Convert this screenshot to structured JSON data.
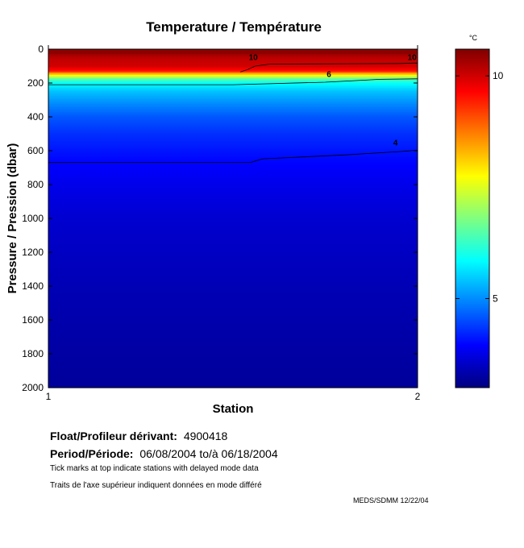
{
  "chart_data": {
    "type": "heatmap",
    "title": "Temperature / Température",
    "xlabel": "Station",
    "ylabel": "Pressure / Pression (dbar)",
    "xlim": [
      1,
      2
    ],
    "ylim": [
      2000,
      0
    ],
    "x_ticks": [
      "1",
      "2"
    ],
    "y_ticks": [
      "0",
      "200",
      "400",
      "600",
      "800",
      "1000",
      "1200",
      "1400",
      "1600",
      "1800",
      "2000"
    ],
    "x_tick_values": [
      1,
      2
    ],
    "y_tick_values": [
      0,
      200,
      400,
      600,
      800,
      1000,
      1200,
      1400,
      1600,
      1800,
      2000
    ],
    "stations": [
      1,
      2
    ],
    "colormap": "jet",
    "colorbar": {
      "unit": "°C",
      "range": [
        3,
        10.6
      ],
      "ticks": [
        "5",
        "10"
      ],
      "tick_values": [
        5,
        10
      ]
    },
    "profile": [
      {
        "p": 25,
        "t": 10.5
      },
      {
        "p": 35,
        "t": 10.3
      },
      {
        "p": 60,
        "t": 10.1
      },
      {
        "p": 100,
        "t": 10.0
      },
      {
        "p": 130,
        "t": 9.5
      },
      {
        "p": 150,
        "t": 8.0
      },
      {
        "p": 165,
        "t": 7.2
      },
      {
        "p": 180,
        "t": 6.4
      },
      {
        "p": 200,
        "t": 5.9
      },
      {
        "p": 250,
        "t": 5.4
      },
      {
        "p": 320,
        "t": 5.0
      },
      {
        "p": 400,
        "t": 4.6
      },
      {
        "p": 500,
        "t": 4.3
      },
      {
        "p": 650,
        "t": 4.0
      },
      {
        "p": 800,
        "t": 3.8
      },
      {
        "p": 1000,
        "t": 3.6
      },
      {
        "p": 1400,
        "t": 3.4
      },
      {
        "p": 2000,
        "t": 3.2
      }
    ],
    "contours": [
      {
        "label": "10",
        "points": [
          [
            1.52,
            135
          ],
          [
            1.54,
            120
          ],
          [
            1.56,
            100
          ],
          [
            1.6,
            88
          ],
          [
            1.8,
            86
          ],
          [
            1.95,
            85
          ],
          [
            2.0,
            82
          ]
        ]
      },
      {
        "label": "6",
        "points": [
          [
            1.0,
            210
          ],
          [
            1.5,
            210
          ],
          [
            1.75,
            195
          ],
          [
            1.9,
            178
          ],
          [
            2.0,
            175
          ]
        ]
      },
      {
        "label": "4",
        "points": [
          [
            1.0,
            670
          ],
          [
            1.55,
            668
          ],
          [
            1.58,
            648
          ],
          [
            1.8,
            625
          ],
          [
            1.95,
            605
          ],
          [
            2.0,
            597
          ]
        ]
      }
    ],
    "contour_labels": [
      {
        "text": "10",
        "x": 1.555,
        "y": 65
      },
      {
        "text": "10",
        "x": 1.985,
        "y": 65
      },
      {
        "text": "6",
        "x": 1.76,
        "y": 165
      },
      {
        "text": "4",
        "x": 1.94,
        "y": 570
      }
    ]
  },
  "info": {
    "float_label": "Float/Profileur dérivant:",
    "float_value": "4900418",
    "period_label": "Period/Période:",
    "period_value": "06/08/2004  to/à  06/18/2004",
    "note_en": "Tick marks at top indicate stations with delayed mode data",
    "note_fr": "Traits de l'axe supérieur indiquent données en mode différé",
    "credit": "MEDS/SDMM  12/22/04"
  },
  "colors": {
    "frame": "#000000",
    "contour": "#000000",
    "background": "#ffffff"
  }
}
